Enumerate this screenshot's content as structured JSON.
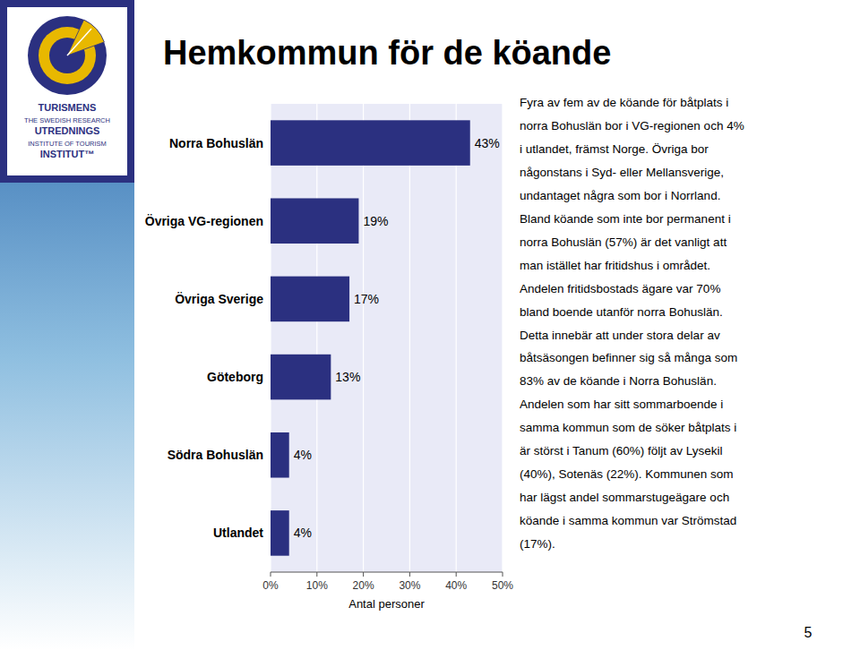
{
  "chart_data": {
    "type": "bar",
    "orientation": "horizontal",
    "title": "Hemkommun för de köande",
    "categories": [
      "Utlandet",
      "Södra Bohuslän",
      "Göteborg",
      "Övriga Sverige",
      "Övriga VG-regionen",
      "Norra Bohuslän"
    ],
    "values": [
      4,
      4,
      13,
      17,
      19,
      43
    ],
    "value_labels": [
      "4%",
      "4%",
      "13%",
      "17%",
      "19%",
      "43%"
    ],
    "data_labels": true,
    "color": "#2B3080",
    "xlabel": "Antal personer",
    "xlim": [
      0,
      50
    ],
    "xticks": [
      {
        "value": 0,
        "label": "0%"
      },
      {
        "value": 10,
        "label": "10%"
      },
      {
        "value": 20,
        "label": "20%"
      },
      {
        "value": 30,
        "label": "30%"
      },
      {
        "value": 40,
        "label": "40%"
      },
      {
        "value": 50,
        "label": "50%"
      }
    ],
    "grid": true,
    "annotations": {
      "text_block": [
        "Fyra av fem av de köande för båtplats i",
        "norra Bohuslän bor i VG-regionen och 4%",
        "i utlandet, främst Norge.  Övriga bor",
        "någonstans i Syd- eller Mellansverige,",
        "undantaget några som bor i Norrland.",
        "Bland köande som inte bor permanent i",
        "norra Bohuslän (57%) är det vanligt att",
        "man istället har fritidshus i området.",
        "Andelen fritidsbostads ägare var 70%",
        "bland boende utanför norra Bohuslän.",
        "Detta innebär att under stora delar av",
        "båtsäsongen befinner sig så många som",
        "83% av de köande i Norra Bohuslän.",
        "Andelen som har sitt sommarboende i",
        "samma kommun som de söker båtplats i",
        "är störst i Tanum (60%) följt av Lysekil",
        "(40%), Sotenäs (22%).  Kommunen som",
        "har lägst andel sommarstugeägare och",
        "köande i samma kommun var Strömstad",
        "(17%)."
      ],
      "logo": [
        "TURISMENS",
        "THE SWEDISH RESEARCH",
        "UTREDNINGS",
        "INSTITUTE OF TOURISM",
        "INSTITUT™"
      ],
      "page_number": "5"
    }
  }
}
